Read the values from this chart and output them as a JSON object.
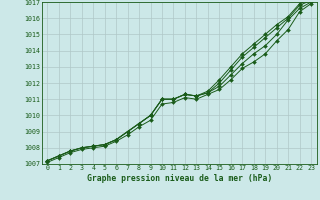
{
  "xlabel": "Graphe pression niveau de la mer (hPa)",
  "xlim": [
    -0.5,
    23.5
  ],
  "ylim": [
    1007,
    1017
  ],
  "yticks": [
    1007,
    1008,
    1009,
    1010,
    1011,
    1012,
    1013,
    1014,
    1015,
    1016,
    1017
  ],
  "xticks": [
    0,
    1,
    2,
    3,
    4,
    5,
    6,
    7,
    8,
    9,
    10,
    11,
    12,
    13,
    14,
    15,
    16,
    17,
    18,
    19,
    20,
    21,
    22,
    23
  ],
  "bg_color": "#cce8e8",
  "line_color": "#1a5c1a",
  "grid_color": "#b0c8c8",
  "lines": [
    [
      1007.2,
      1007.5,
      1007.8,
      1008.0,
      1008.1,
      1008.2,
      1008.5,
      1009.0,
      1009.5,
      1010.0,
      1011.0,
      1011.0,
      1011.3,
      1011.2,
      1011.4,
      1011.8,
      1012.5,
      1013.2,
      1013.8,
      1014.3,
      1015.0,
      1015.9,
      1016.6,
      1017.0
    ],
    [
      1007.2,
      1007.5,
      1007.8,
      1008.0,
      1008.1,
      1008.2,
      1008.5,
      1009.0,
      1009.5,
      1010.0,
      1011.0,
      1011.0,
      1011.3,
      1011.2,
      1011.4,
      1012.0,
      1012.8,
      1013.6,
      1014.2,
      1014.8,
      1015.4,
      1016.0,
      1016.8,
      1017.1
    ],
    [
      1007.2,
      1007.5,
      1007.8,
      1008.0,
      1008.1,
      1008.2,
      1008.5,
      1009.0,
      1009.5,
      1010.0,
      1011.0,
      1011.0,
      1011.3,
      1011.2,
      1011.5,
      1012.2,
      1013.0,
      1013.8,
      1014.4,
      1015.0,
      1015.6,
      1016.1,
      1016.9,
      1017.2
    ],
    [
      1007.1,
      1007.4,
      1007.7,
      1007.9,
      1008.0,
      1008.1,
      1008.4,
      1008.8,
      1009.3,
      1009.7,
      1010.7,
      1010.8,
      1011.1,
      1011.0,
      1011.3,
      1011.6,
      1012.2,
      1012.9,
      1013.3,
      1013.8,
      1014.6,
      1015.3,
      1016.4,
      1016.9
    ]
  ]
}
